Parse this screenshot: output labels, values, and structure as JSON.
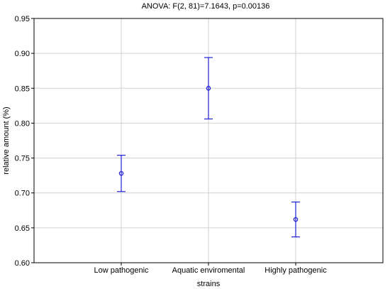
{
  "chart_data": {
    "type": "scatter",
    "title": "ANOVA: F(2, 81)=7.1643, p=0.00136",
    "xlabel": "strains",
    "ylabel": "relative amount (%)",
    "categories": [
      "Low pathogenic",
      "Aquatic enviromental",
      "Highly pathogenic"
    ],
    "means": [
      0.728,
      0.85,
      0.662
    ],
    "lower": [
      0.702,
      0.806,
      0.637
    ],
    "upper": [
      0.754,
      0.894,
      0.687
    ],
    "ylim": [
      0.6,
      0.95
    ],
    "yticks": [
      "0.60",
      "0.65",
      "0.70",
      "0.75",
      "0.80",
      "0.85",
      "0.90",
      "0.95"
    ],
    "grid": true,
    "marker_color": "#1f1fd6"
  }
}
